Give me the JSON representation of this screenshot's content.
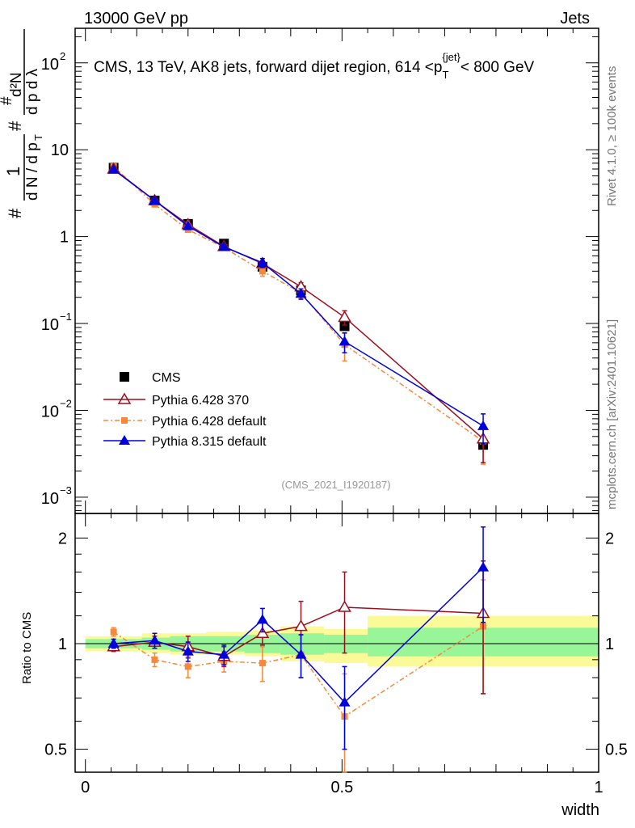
{
  "header": {
    "left": "13000 GeV pp",
    "right": "Jets"
  },
  "side_labels": {
    "rivet": "Rivet 4.1.0, ≥ 100k events",
    "mcplots": "mcplots.cern.ch [arXiv:2401.10621]"
  },
  "colors": {
    "cms": "#000000",
    "py6_370": "#9b0e1e",
    "py6_default": "#f5883a",
    "py8_default": "#0000dd",
    "band_green": "#98f598",
    "band_yellow": "#fafa98"
  },
  "chart_data": [
    {
      "type": "line",
      "panel": "main",
      "title": "CMS, 13 TeV, AK8 jets, forward dijet region, 614 <p_T^{jet}< 800 GeV",
      "title_parts": {
        "pre": "CMS, 13 TeV, AK8 jets, forward dijet region, 614 <p",
        "sub": "T",
        "sup": "{jet}",
        "post": "< 800 GeV"
      },
      "ylabel": "1/dN/dp_T  d²N/dp_T dλ",
      "ylabel_parts": {
        "hash1": "#",
        "one": "1",
        "dN": "d N / d p",
        "T": "T",
        "hash2": "#",
        "hash3": "#",
        "d2N": "d²N",
        "dpTdl": "d p   d λ"
      },
      "yscale": "log",
      "ylim": [
        0.00065,
        250
      ],
      "xlim": [
        -0.02,
        1.0
      ],
      "ytick_labels": {
        "e2": [
          "10",
          "2"
        ],
        "e1": [
          "10",
          ""
        ],
        "e0": [
          "1",
          ""
        ],
        "em1": [
          "10",
          "−1"
        ],
        "em2": [
          "10",
          "−2"
        ],
        "em3": [
          "10",
          "−3"
        ]
      },
      "watermark": "(CMS_2021_I1920187)",
      "x": [
        0.055,
        0.135,
        0.2,
        0.27,
        0.345,
        0.42,
        0.505,
        0.775
      ],
      "cms": {
        "name": "CMS",
        "values": [
          6.2,
          2.6,
          1.4,
          0.83,
          0.45,
          0.24,
          0.093,
          0.004
        ],
        "yerr": [
          0.2,
          0.07,
          0.05,
          0.03,
          0.02,
          0.015,
          0.006,
          0.0003
        ]
      },
      "series": [
        {
          "key": "py6_370",
          "name": "Pythia 6.428 370",
          "marker": "open-triangle",
          "dash": "",
          "values": [
            6.0,
            2.6,
            1.38,
            0.77,
            0.49,
            0.265,
            0.118,
            0.0047
          ],
          "yerr": [
            0.25,
            0.1,
            0.06,
            0.04,
            0.04,
            0.03,
            0.022,
            0.0022
          ]
        },
        {
          "key": "py6_default",
          "name": "Pythia 6.428 default",
          "marker": "square",
          "dash": "6,3,2,3",
          "values": [
            6.4,
            2.35,
            1.2,
            0.75,
            0.4,
            0.225,
            0.057,
            0.0044
          ],
          "yerr": [
            0.25,
            0.1,
            0.06,
            0.05,
            0.05,
            0.03,
            0.02,
            0.002
          ]
        },
        {
          "key": "py8_default",
          "name": "Pythia 8.315 default",
          "marker": "triangle",
          "dash": "",
          "values": [
            5.9,
            2.6,
            1.32,
            0.76,
            0.5,
            0.22,
            0.062,
            0.0066
          ],
          "yerr": [
            0.25,
            0.1,
            0.06,
            0.04,
            0.06,
            0.03,
            0.016,
            0.0025
          ]
        }
      ],
      "legend_position": "middle-left"
    },
    {
      "type": "line",
      "panel": "ratio",
      "ylabel": "Ratio to CMS",
      "xlabel": "width",
      "ylim": [
        0.43,
        2.35
      ],
      "yscale": "log",
      "yticks": [
        0.5,
        1,
        2
      ],
      "ytick_labels": [
        "0.5",
        "1",
        "2"
      ],
      "xticks": [
        0,
        0.5,
        1
      ],
      "xtick_labels": [
        "0",
        "0.5",
        "1"
      ],
      "bins": [
        {
          "lo": 0.0,
          "hi": 0.11,
          "g": [
            0.97,
            1.03
          ],
          "y": [
            0.95,
            1.05
          ]
        },
        {
          "lo": 0.11,
          "hi": 0.165,
          "g": [
            0.96,
            1.04
          ],
          "y": [
            0.94,
            1.07
          ]
        },
        {
          "lo": 0.165,
          "hi": 0.235,
          "g": [
            0.95,
            1.05
          ],
          "y": [
            0.93,
            1.07
          ]
        },
        {
          "lo": 0.235,
          "hi": 0.31,
          "g": [
            0.95,
            1.05
          ],
          "y": [
            0.93,
            1.08
          ]
        },
        {
          "lo": 0.31,
          "hi": 0.38,
          "g": [
            0.94,
            1.06
          ],
          "y": [
            0.92,
            1.09
          ]
        },
        {
          "lo": 0.38,
          "hi": 0.465,
          "g": [
            0.93,
            1.07
          ],
          "y": [
            0.89,
            1.12
          ]
        },
        {
          "lo": 0.465,
          "hi": 0.55,
          "g": [
            0.94,
            1.06
          ],
          "y": [
            0.88,
            1.1
          ]
        },
        {
          "lo": 0.55,
          "hi": 1.0,
          "g": [
            0.92,
            1.11
          ],
          "y": [
            0.86,
            1.2
          ]
        }
      ],
      "series": [
        {
          "key": "py6_370",
          "values": [
            0.98,
            1.01,
            0.98,
            0.92,
            1.07,
            1.12,
            1.27,
            1.22
          ],
          "yerr": [
            0.03,
            0.04,
            0.07,
            0.06,
            0.08,
            0.2,
            0.33,
            0.5
          ]
        },
        {
          "key": "py6_default",
          "values": [
            1.08,
            0.9,
            0.86,
            0.89,
            0.88,
            0.93,
            0.62,
            1.12
          ],
          "yerr": [
            0.03,
            0.04,
            0.06,
            0.06,
            0.1,
            0.13,
            0.2,
            0.4
          ]
        },
        {
          "key": "py8_default",
          "values": [
            1.0,
            1.02,
            0.95,
            0.93,
            1.17,
            0.93,
            0.68,
            1.65
          ],
          "yerr": [
            0.03,
            0.05,
            0.06,
            0.06,
            0.09,
            0.13,
            0.18,
            0.5
          ]
        }
      ]
    }
  ]
}
